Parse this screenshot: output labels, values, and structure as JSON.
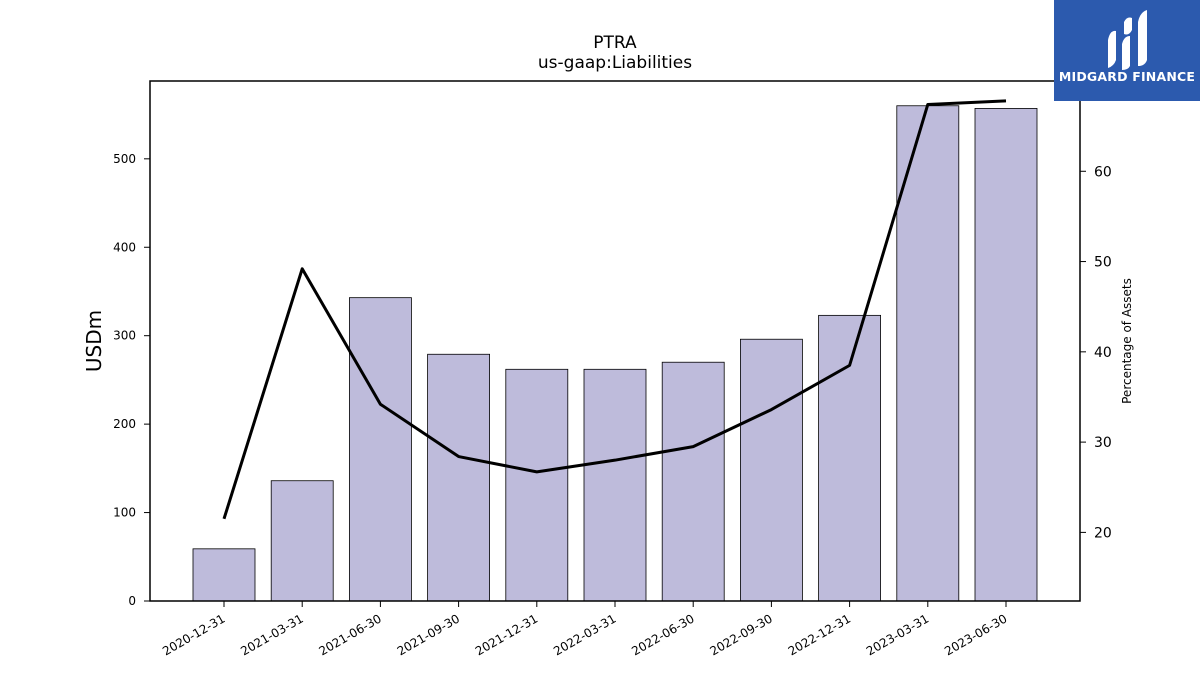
{
  "chart_data": {
    "type": "bar",
    "title": "PTRA",
    "subtitle": "us-gaap:Liabilities",
    "ylabel": "USDm",
    "y2label": "Percentage of Assets",
    "categories": [
      "2020-12-31",
      "2021-03-31",
      "2021-06-30",
      "2021-09-30",
      "2021-12-31",
      "2022-03-31",
      "2022-06-30",
      "2022-09-30",
      "2022-12-31",
      "2023-03-31",
      "2023-06-30"
    ],
    "series": [
      {
        "axis": "left",
        "kind": "bar",
        "color": "#bebbdb",
        "values": [
          59,
          136,
          343,
          279,
          262,
          262,
          270,
          296,
          323,
          560,
          557
        ]
      },
      {
        "axis": "right",
        "kind": "line",
        "color": "#000000",
        "values": [
          21.5,
          49.2,
          34.2,
          28.4,
          26.7,
          28.0,
          29.5,
          33.6,
          38.5,
          67.4,
          67.8
        ]
      }
    ],
    "ylim": [
      0,
      588
    ],
    "y2lim": [
      12.4,
      70.0
    ],
    "yticks": [
      0,
      100,
      200,
      300,
      400,
      500
    ],
    "y2ticks": [
      20,
      30,
      40,
      50,
      60
    ],
    "grid": false
  },
  "logo": {
    "text": "MIDGARD FINANCE",
    "bg_color": "#2c5aae"
  }
}
